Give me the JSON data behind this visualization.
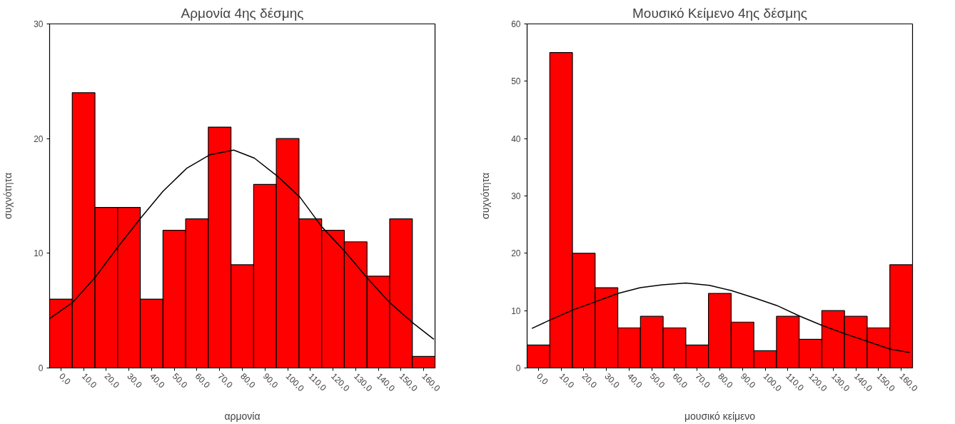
{
  "chart_data": [
    {
      "type": "histogram",
      "title": "Αρμονία 4ης δέσμης",
      "xlabel": "αρμονία",
      "ylabel": "συχνότητα",
      "color": "#ff0000",
      "grid": false,
      "bins": [
        -5,
        5,
        15,
        25,
        35,
        45,
        55,
        65,
        75,
        85,
        95,
        105,
        115,
        125,
        135,
        145,
        155,
        165
      ],
      "values": [
        6,
        24,
        14,
        14,
        6,
        12,
        13,
        21,
        9,
        16,
        20,
        13,
        12,
        11,
        8,
        13,
        1
      ],
      "xlim": [
        -5,
        165
      ],
      "ylim": [
        0,
        30
      ],
      "yticks": [
        0,
        10,
        20,
        30
      ],
      "xticks": [
        {
          "value": 0,
          "label": "0,0"
        },
        {
          "value": 10,
          "label": "10,0"
        },
        {
          "value": 20,
          "label": "20,0"
        },
        {
          "value": 30,
          "label": "30,0"
        },
        {
          "value": 40,
          "label": "40,0"
        },
        {
          "value": 50,
          "label": "50,0"
        },
        {
          "value": 60,
          "label": "60,0"
        },
        {
          "value": 70,
          "label": "70,0"
        },
        {
          "value": 80,
          "label": "80,0"
        },
        {
          "value": 90,
          "label": "90,0"
        },
        {
          "value": 100,
          "label": "100,0"
        },
        {
          "value": 110,
          "label": "110,0"
        },
        {
          "value": 120,
          "label": "120,0"
        },
        {
          "value": 130,
          "label": "130,0"
        },
        {
          "value": 140,
          "label": "140,0"
        },
        {
          "value": 150,
          "label": "150,0"
        },
        {
          "value": 160,
          "label": "160,0"
        }
      ],
      "series": [
        {
          "type": "line",
          "color": "#000000",
          "x": [
            -5,
            5.1,
            15.1,
            25.3,
            35.3,
            45,
            55.4,
            65.8,
            76.2,
            85.3,
            95.6,
            105.4,
            115.1,
            125.5,
            135.3,
            145,
            155.4,
            164.5
          ],
          "values": [
            4.3,
            5.7,
            7.9,
            10.6,
            13.1,
            15.4,
            17.4,
            18.6,
            19.0,
            18.3,
            16.7,
            14.9,
            12.3,
            10.1,
            7.8,
            5.7,
            3.9,
            2.5
          ]
        }
      ]
    },
    {
      "type": "histogram",
      "title": "Μουσικό Κείμενο 4ης δέσμης",
      "xlabel": "μουσικό κείμενο",
      "ylabel": "συχνότητα",
      "color": "#ff0000",
      "grid": false,
      "bins": [
        -5,
        5,
        15,
        25,
        35,
        45,
        55,
        65,
        75,
        85,
        95,
        105,
        115,
        125,
        135,
        145,
        155,
        165
      ],
      "values": [
        4,
        55,
        20,
        14,
        7,
        9,
        7,
        4,
        13,
        8,
        3,
        9,
        5,
        10,
        9,
        7,
        18
      ],
      "xlim": [
        -5,
        165
      ],
      "ylim": [
        0,
        60
      ],
      "yticks": [
        0,
        10,
        20,
        30,
        40,
        50,
        60
      ],
      "xticks": [
        {
          "value": 0,
          "label": "0,0"
        },
        {
          "value": 10,
          "label": "10,0"
        },
        {
          "value": 20,
          "label": "20,0"
        },
        {
          "value": 30,
          "label": "30,0"
        },
        {
          "value": 40,
          "label": "40,0"
        },
        {
          "value": 50,
          "label": "50,0"
        },
        {
          "value": 60,
          "label": "60,0"
        },
        {
          "value": 70,
          "label": "70,0"
        },
        {
          "value": 80,
          "label": "80,0"
        },
        {
          "value": 90,
          "label": "90,0"
        },
        {
          "value": 100,
          "label": "100,0"
        },
        {
          "value": 110,
          "label": "110,0"
        },
        {
          "value": 120,
          "label": "120,0"
        },
        {
          "value": 130,
          "label": "130,0"
        },
        {
          "value": 140,
          "label": "140,0"
        },
        {
          "value": 150,
          "label": "150,0"
        },
        {
          "value": 160,
          "label": "160,0"
        }
      ],
      "series": [
        {
          "type": "line",
          "color": "#000000",
          "x": [
            -2.9,
            4.7,
            15.1,
            24.8,
            35.2,
            44.9,
            54.6,
            65,
            75.4,
            85,
            95.4,
            105.1,
            115.5,
            125.2,
            135.6,
            145.3,
            155,
            163.7
          ],
          "values": [
            6.9,
            8.3,
            10.1,
            11.5,
            13.0,
            14.0,
            14.5,
            14.8,
            14.4,
            13.5,
            12.2,
            10.9,
            9.0,
            7.4,
            5.9,
            4.6,
            3.3,
            2.7
          ]
        }
      ]
    }
  ]
}
